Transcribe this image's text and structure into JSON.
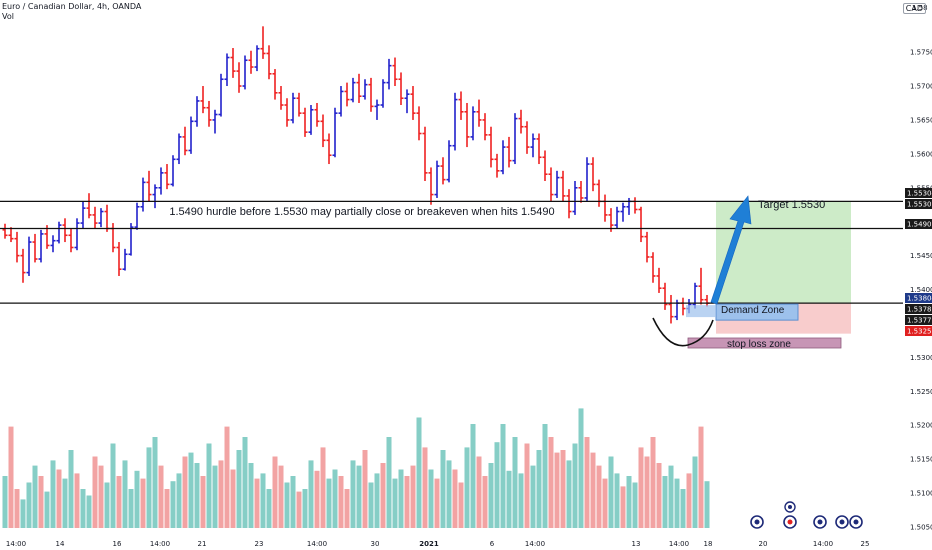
{
  "header": {
    "symbol": "Euro / Canadian Dollar, 4h, OANDA",
    "vol_label": "Vol",
    "currency": "CAD"
  },
  "colors": {
    "up": "#2222cc",
    "down": "#ee2222",
    "vol_up": "#86cec6",
    "vol_down": "#f2a3a3",
    "target_zone": "#cdebc8",
    "risk_zone": "#f8cccc",
    "demand_zone": "#9dc1ec",
    "stop_zone": "#c795b5",
    "arrow": "#1f7fd6",
    "price_tag": "#1a1a1a",
    "last_tag": "#1e3a8a",
    "stop_tag": "#e02020"
  },
  "chart_data": {
    "type": "ohlc",
    "title": "Euro / Canadian Dollar, 4h, OANDA",
    "ylim": [
      1.505,
      1.5815
    ],
    "y_ticks": [
      1.575,
      1.57,
      1.565,
      1.56,
      1.555,
      1.545,
      1.54,
      1.53,
      1.525,
      1.52,
      1.515,
      1.51,
      1.505
    ],
    "y_top_partial": "1.58",
    "x_ticks": [
      "14:00",
      "14",
      "16",
      "14:00",
      "21",
      "23",
      "14:00",
      "30",
      "2021",
      "6",
      "14:00",
      "13",
      "14:00",
      "18",
      "20",
      "14:00",
      "25"
    ],
    "price_tags": [
      "1.55304",
      "1.55300",
      "1.54900",
      "1.53804",
      "1.53785",
      "1.53776",
      "1.53252"
    ],
    "horizontal_levels": [
      1.553,
      1.549,
      1.538
    ],
    "bars": [
      [
        1.5488,
        1.5497,
        1.5475,
        1.548
      ],
      [
        1.548,
        1.5492,
        1.547,
        1.5475
      ],
      [
        1.5475,
        1.5485,
        1.544,
        1.545
      ],
      [
        1.545,
        1.546,
        1.541,
        1.5425
      ],
      [
        1.5425,
        1.5478,
        1.542,
        1.547
      ],
      [
        1.547,
        1.5482,
        1.544,
        1.5445
      ],
      [
        1.5445,
        1.5488,
        1.544,
        1.5482
      ],
      [
        1.5482,
        1.5495,
        1.546,
        1.5465
      ],
      [
        1.5465,
        1.548,
        1.5455,
        1.5472
      ],
      [
        1.5472,
        1.55,
        1.5468,
        1.5495
      ],
      [
        1.5495,
        1.5505,
        1.547,
        1.548
      ],
      [
        1.548,
        1.549,
        1.5455,
        1.5462
      ],
      [
        1.5462,
        1.5505,
        1.5458,
        1.5498
      ],
      [
        1.5498,
        1.553,
        1.549,
        1.552
      ],
      [
        1.552,
        1.5542,
        1.5505,
        1.551
      ],
      [
        1.551,
        1.5522,
        1.549,
        1.5498
      ],
      [
        1.5498,
        1.552,
        1.5492,
        1.5515
      ],
      [
        1.5515,
        1.5525,
        1.5485,
        1.549
      ],
      [
        1.549,
        1.5498,
        1.5455,
        1.5462
      ],
      [
        1.5462,
        1.547,
        1.542,
        1.543
      ],
      [
        1.543,
        1.546,
        1.5428,
        1.5452
      ],
      [
        1.5452,
        1.5498,
        1.545,
        1.5492
      ],
      [
        1.5492,
        1.5528,
        1.5488,
        1.5522
      ],
      [
        1.5522,
        1.5565,
        1.5515,
        1.5558
      ],
      [
        1.5558,
        1.5575,
        1.553,
        1.554
      ],
      [
        1.554,
        1.5555,
        1.552,
        1.555
      ],
      [
        1.555,
        1.558,
        1.554,
        1.5572
      ],
      [
        1.5572,
        1.5585,
        1.5548,
        1.5555
      ],
      [
        1.5555,
        1.5598,
        1.5552,
        1.5592
      ],
      [
        1.5592,
        1.563,
        1.5585,
        1.5625
      ],
      [
        1.5625,
        1.564,
        1.5598,
        1.5605
      ],
      [
        1.5605,
        1.5655,
        1.56,
        1.5648
      ],
      [
        1.5648,
        1.5685,
        1.564,
        1.5678
      ],
      [
        1.5678,
        1.57,
        1.566,
        1.5668
      ],
      [
        1.5668,
        1.5678,
        1.564,
        1.565
      ],
      [
        1.565,
        1.5665,
        1.563,
        1.5658
      ],
      [
        1.5658,
        1.5718,
        1.5655,
        1.571
      ],
      [
        1.571,
        1.5748,
        1.57,
        1.5742
      ],
      [
        1.5742,
        1.5756,
        1.5712,
        1.5722
      ],
      [
        1.5722,
        1.5735,
        1.569,
        1.57
      ],
      [
        1.57,
        1.5745,
        1.5695,
        1.5738
      ],
      [
        1.5738,
        1.5752,
        1.5718,
        1.5728
      ],
      [
        1.5728,
        1.576,
        1.5722,
        1.5755
      ],
      [
        1.5755,
        1.5788,
        1.574,
        1.5748
      ],
      [
        1.5748,
        1.576,
        1.571,
        1.5718
      ],
      [
        1.5718,
        1.5725,
        1.568,
        1.569
      ],
      [
        1.569,
        1.57,
        1.5665,
        1.5672
      ],
      [
        1.5672,
        1.5682,
        1.564,
        1.565
      ],
      [
        1.565,
        1.569,
        1.5645,
        1.5682
      ],
      [
        1.5682,
        1.569,
        1.5655,
        1.566
      ],
      [
        1.566,
        1.5668,
        1.5625,
        1.5632
      ],
      [
        1.5632,
        1.5672,
        1.5628,
        1.5665
      ],
      [
        1.5665,
        1.5675,
        1.564,
        1.5648
      ],
      [
        1.5648,
        1.5658,
        1.561,
        1.562
      ],
      [
        1.562,
        1.563,
        1.5585,
        1.5598
      ],
      [
        1.5598,
        1.5668,
        1.5595,
        1.566
      ],
      [
        1.566,
        1.57,
        1.5655,
        1.5692
      ],
      [
        1.5692,
        1.5705,
        1.567,
        1.568
      ],
      [
        1.568,
        1.5712,
        1.5676,
        1.5705
      ],
      [
        1.5705,
        1.5718,
        1.5675,
        1.5685
      ],
      [
        1.5685,
        1.571,
        1.568,
        1.5702
      ],
      [
        1.5702,
        1.5712,
        1.5662,
        1.567
      ],
      [
        1.567,
        1.568,
        1.565,
        1.5672
      ],
      [
        1.5672,
        1.571,
        1.5668,
        1.5705
      ],
      [
        1.5705,
        1.574,
        1.5695,
        1.573
      ],
      [
        1.573,
        1.5742,
        1.57,
        1.571
      ],
      [
        1.571,
        1.572,
        1.5672,
        1.5682
      ],
      [
        1.5682,
        1.5695,
        1.566,
        1.5688
      ],
      [
        1.5688,
        1.57,
        1.565,
        1.566
      ],
      [
        1.566,
        1.567,
        1.562,
        1.563
      ],
      [
        1.563,
        1.564,
        1.556,
        1.5572
      ],
      [
        1.5572,
        1.558,
        1.5525,
        1.554
      ],
      [
        1.554,
        1.559,
        1.5535,
        1.5582
      ],
      [
        1.5582,
        1.5595,
        1.5555,
        1.5562
      ],
      [
        1.5562,
        1.562,
        1.5558,
        1.5612
      ],
      [
        1.5612,
        1.569,
        1.5605,
        1.568
      ],
      [
        1.568,
        1.5692,
        1.565,
        1.5662
      ],
      [
        1.5662,
        1.5675,
        1.561,
        1.5625
      ],
      [
        1.5625,
        1.567,
        1.562,
        1.5662
      ],
      [
        1.5662,
        1.568,
        1.564,
        1.565
      ],
      [
        1.565,
        1.566,
        1.562,
        1.5628
      ],
      [
        1.5628,
        1.564,
        1.558,
        1.5592
      ],
      [
        1.5592,
        1.56,
        1.5565,
        1.5575
      ],
      [
        1.5575,
        1.562,
        1.557,
        1.561
      ],
      [
        1.561,
        1.5625,
        1.558,
        1.559
      ],
      [
        1.559,
        1.566,
        1.5585,
        1.5652
      ],
      [
        1.5652,
        1.5665,
        1.563,
        1.564
      ],
      [
        1.564,
        1.5648,
        1.56,
        1.561
      ],
      [
        1.561,
        1.563,
        1.5595,
        1.5622
      ],
      [
        1.5622,
        1.563,
        1.5585,
        1.5595
      ],
      [
        1.5595,
        1.5605,
        1.556,
        1.557
      ],
      [
        1.557,
        1.558,
        1.553,
        1.554
      ],
      [
        1.554,
        1.5575,
        1.5535,
        1.5565
      ],
      [
        1.5565,
        1.5575,
        1.553,
        1.5538
      ],
      [
        1.5538,
        1.5548,
        1.5505,
        1.5515
      ],
      [
        1.5515,
        1.556,
        1.551,
        1.555
      ],
      [
        1.555,
        1.556,
        1.5528,
        1.5535
      ],
      [
        1.5535,
        1.5595,
        1.553,
        1.5585
      ],
      [
        1.5585,
        1.5595,
        1.5545,
        1.5555
      ],
      [
        1.5555,
        1.5562,
        1.5522,
        1.553
      ],
      [
        1.553,
        1.554,
        1.55,
        1.551
      ],
      [
        1.551,
        1.552,
        1.5485,
        1.5495
      ],
      [
        1.5495,
        1.5522,
        1.549,
        1.5515
      ],
      [
        1.5515,
        1.5528,
        1.55,
        1.5522
      ],
      [
        1.5522,
        1.5535,
        1.551,
        1.553
      ],
      [
        1.553,
        1.5536,
        1.5512,
        1.5518
      ],
      [
        1.5518,
        1.5522,
        1.547,
        1.5478
      ],
      [
        1.5478,
        1.5485,
        1.544,
        1.5448
      ],
      [
        1.5448,
        1.5455,
        1.541,
        1.542
      ],
      [
        1.542,
        1.5432,
        1.5395,
        1.5402
      ],
      [
        1.5402,
        1.541,
        1.537,
        1.5378
      ],
      [
        1.5378,
        1.5392,
        1.535,
        1.536
      ],
      [
        1.536,
        1.5385,
        1.5355,
        1.538
      ],
      [
        1.538,
        1.5388,
        1.5362,
        1.5372
      ],
      [
        1.5372,
        1.5386,
        1.5365,
        1.5378
      ],
      [
        1.5378,
        1.541,
        1.5372,
        1.5405
      ],
      [
        1.5405,
        1.5432,
        1.5378,
        1.5385
      ],
      [
        1.5385,
        1.5392,
        1.5375,
        1.538
      ]
    ],
    "volume_max": 100,
    "volumes": [
      [
        40,
        1
      ],
      [
        78,
        0
      ],
      [
        30,
        0
      ],
      [
        22,
        1
      ],
      [
        35,
        1
      ],
      [
        48,
        1
      ],
      [
        40,
        0
      ],
      [
        28,
        1
      ],
      [
        52,
        1
      ],
      [
        45,
        0
      ],
      [
        38,
        1
      ],
      [
        60,
        1
      ],
      [
        42,
        0
      ],
      [
        30,
        1
      ],
      [
        25,
        1
      ],
      [
        55,
        0
      ],
      [
        48,
        0
      ],
      [
        35,
        1
      ],
      [
        65,
        1
      ],
      [
        40,
        0
      ],
      [
        52,
        1
      ],
      [
        30,
        1
      ],
      [
        44,
        1
      ],
      [
        38,
        0
      ],
      [
        62,
        1
      ],
      [
        70,
        1
      ],
      [
        48,
        0
      ],
      [
        30,
        0
      ],
      [
        36,
        1
      ],
      [
        42,
        1
      ],
      [
        55,
        0
      ],
      [
        58,
        1
      ],
      [
        50,
        1
      ],
      [
        40,
        0
      ],
      [
        65,
        1
      ],
      [
        48,
        1
      ],
      [
        52,
        0
      ],
      [
        78,
        0
      ],
      [
        45,
        0
      ],
      [
        60,
        1
      ],
      [
        70,
        1
      ],
      [
        50,
        1
      ],
      [
        38,
        0
      ],
      [
        42,
        1
      ],
      [
        30,
        1
      ],
      [
        55,
        0
      ],
      [
        48,
        0
      ],
      [
        35,
        1
      ],
      [
        40,
        1
      ],
      [
        28,
        0
      ],
      [
        30,
        1
      ],
      [
        52,
        1
      ],
      [
        44,
        0
      ],
      [
        62,
        0
      ],
      [
        38,
        1
      ],
      [
        45,
        1
      ],
      [
        40,
        0
      ],
      [
        30,
        0
      ],
      [
        52,
        1
      ],
      [
        48,
        1
      ],
      [
        60,
        0
      ],
      [
        35,
        1
      ],
      [
        42,
        1
      ],
      [
        50,
        0
      ],
      [
        70,
        1
      ],
      [
        38,
        1
      ],
      [
        45,
        1
      ],
      [
        40,
        0
      ],
      [
        48,
        0
      ],
      [
        85,
        1
      ],
      [
        62,
        0
      ],
      [
        45,
        1
      ],
      [
        38,
        0
      ],
      [
        60,
        1
      ],
      [
        52,
        1
      ],
      [
        45,
        0
      ],
      [
        35,
        0
      ],
      [
        62,
        1
      ],
      [
        80,
        1
      ],
      [
        55,
        0
      ],
      [
        40,
        0
      ],
      [
        50,
        1
      ],
      [
        66,
        1
      ],
      [
        80,
        1
      ],
      [
        44,
        1
      ],
      [
        70,
        1
      ],
      [
        42,
        1
      ],
      [
        65,
        0
      ],
      [
        48,
        1
      ],
      [
        60,
        1
      ],
      [
        80,
        1
      ],
      [
        70,
        0
      ],
      [
        58,
        0
      ],
      [
        60,
        0
      ],
      [
        52,
        1
      ],
      [
        65,
        1
      ],
      [
        92,
        1
      ],
      [
        70,
        0
      ],
      [
        58,
        0
      ],
      [
        48,
        0
      ],
      [
        38,
        0
      ],
      [
        55,
        1
      ],
      [
        42,
        1
      ],
      [
        32,
        0
      ],
      [
        40,
        1
      ],
      [
        35,
        1
      ],
      [
        62,
        0
      ],
      [
        55,
        0
      ],
      [
        70,
        0
      ],
      [
        50,
        0
      ],
      [
        40,
        1
      ],
      [
        48,
        1
      ],
      [
        38,
        1
      ],
      [
        30,
        1
      ],
      [
        42,
        0
      ],
      [
        55,
        1
      ],
      [
        78,
        0
      ],
      [
        36,
        1
      ]
    ]
  },
  "annotations": {
    "headline": "1.5490 hurdle before 1.5530 may partially close or breakeven when hits 1.5490",
    "target": "Target 1.5530",
    "demand_zone": "Demand Zone",
    "stop_loss": "stop loss zone"
  },
  "bottom_icons": [
    "calendar-event-icon",
    "earnings-icon",
    "dividend-icon",
    "split-icon",
    "news-icon",
    "news-icon"
  ]
}
